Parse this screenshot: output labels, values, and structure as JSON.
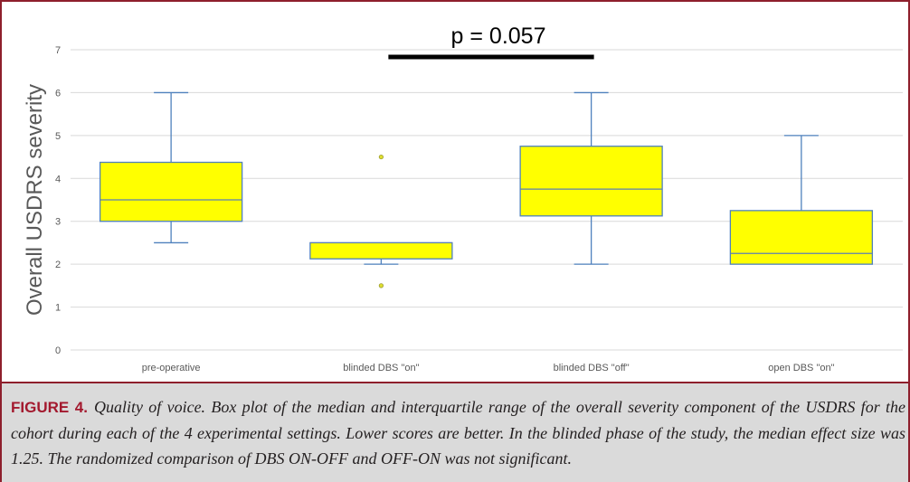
{
  "figure": {
    "caption_label": "FIGURE 4.",
    "caption_text": "Quality of voice. Box plot of the median and interquartile range of the overall severity component of the USDRS for the cohort during each of the 4 experimental settings. Lower scores are better. In the blinded phase of the study, the median effect size was 1.25. The randomized comparison of DBS ON-OFF and OFF-ON was not significant.",
    "colors": {
      "frame": "#8e1f2c",
      "label": "#a3192e",
      "caption_background": "#dadada"
    }
  },
  "chart_data": {
    "type": "box",
    "title": "",
    "xlabel": "",
    "ylabel": "Overall USDRS severity",
    "ylim": [
      0,
      7
    ],
    "yticks": [
      0,
      1,
      2,
      3,
      4,
      5,
      6,
      7
    ],
    "grid": true,
    "legend": false,
    "categories": [
      "pre-operative",
      "blinded DBS \"on\"",
      "blinded DBS \"off\"",
      "open DBS \"on\""
    ],
    "boxes": [
      {
        "whisker_low": 2.5,
        "q1": 3,
        "median": 3.5,
        "q3": 4.375,
        "whisker_high": 6,
        "outliers": []
      },
      {
        "whisker_low": 2,
        "q1": 2.125,
        "median": 2.5,
        "q3": 2.5,
        "whisker_high": 2.5,
        "outliers": [
          4.5,
          1.5
        ]
      },
      {
        "whisker_low": 2,
        "q1": 3.125,
        "median": 3.75,
        "q3": 4.75,
        "whisker_high": 6,
        "outliers": []
      },
      {
        "whisker_low": 2,
        "q1": 2,
        "median": 2.25,
        "q3": 3.25,
        "whisker_high": 5,
        "outliers": []
      }
    ],
    "annotations": [
      {
        "text": "p = 0.057",
        "from_category": 1,
        "to_category": 2
      }
    ],
    "colors": {
      "box_fill": "#ffff00",
      "box_stroke": "#4f81bd",
      "median": "#5b7fb5",
      "outlier": "#dede2e",
      "outlier_stroke": "#9a9a30",
      "bracket": "#000000",
      "grid": "#d9d9d9",
      "text": "#595959"
    }
  }
}
